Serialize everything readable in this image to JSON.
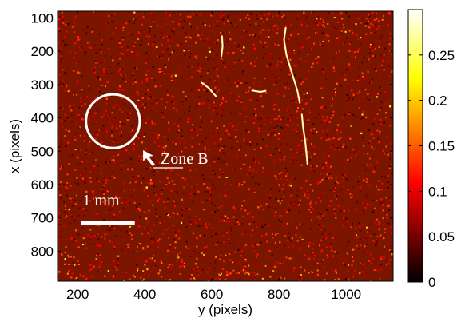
{
  "chart_data": {
    "type": "heatmap",
    "title": "",
    "xlabel": "y (pixels)",
    "ylabel": "x (pixels)",
    "xlim": [
      140,
      1140
    ],
    "ylim": [
      890,
      80
    ],
    "y_axis_direction": "top-to-bottom",
    "xticks": [
      200,
      400,
      600,
      800,
      1000
    ],
    "yticks": [
      100,
      200,
      300,
      400,
      500,
      600,
      700,
      800
    ],
    "xtick_labels": [
      "200",
      "400",
      "600",
      "800",
      "1000"
    ],
    "ytick_labels": [
      "100",
      "200",
      "300",
      "400",
      "500",
      "600",
      "700",
      "800"
    ],
    "colormap": "hot",
    "colorbar": {
      "vmin": 0,
      "vmax": 0.3,
      "ticks": [
        0,
        0.05,
        0.1,
        0.15,
        0.2,
        0.25
      ],
      "tick_labels": [
        "0",
        "0.05",
        "0.1",
        "0.15",
        "0.2",
        "0.25"
      ]
    },
    "background_level": 0.1,
    "cracks": [
      {
        "points": [
          [
            630,
            155
          ],
          [
            632,
            185
          ],
          [
            628,
            215
          ]
        ]
      },
      {
        "points": [
          [
            570,
            295
          ],
          [
            590,
            310
          ],
          [
            612,
            335
          ]
        ]
      },
      {
        "points": [
          [
            720,
            318
          ],
          [
            745,
            322
          ],
          [
            760,
            319
          ]
        ]
      },
      {
        "points": [
          [
            820,
            130
          ],
          [
            815,
            165
          ],
          [
            822,
            210
          ],
          [
            840,
            270
          ],
          [
            855,
            320
          ],
          [
            862,
            355
          ]
        ]
      },
      {
        "points": [
          [
            868,
            390
          ],
          [
            872,
            430
          ],
          [
            878,
            470
          ],
          [
            885,
            540
          ]
        ]
      }
    ],
    "annotations": {
      "circle": {
        "x": 305,
        "y": 410,
        "radius": 80
      },
      "zone_label": "Zone B",
      "zone_arrow_tip": {
        "x": 395,
        "y": 497
      },
      "scale_bar": {
        "x_start": 210,
        "x_end": 370,
        "y": 715,
        "label": "1 mm"
      }
    }
  }
}
